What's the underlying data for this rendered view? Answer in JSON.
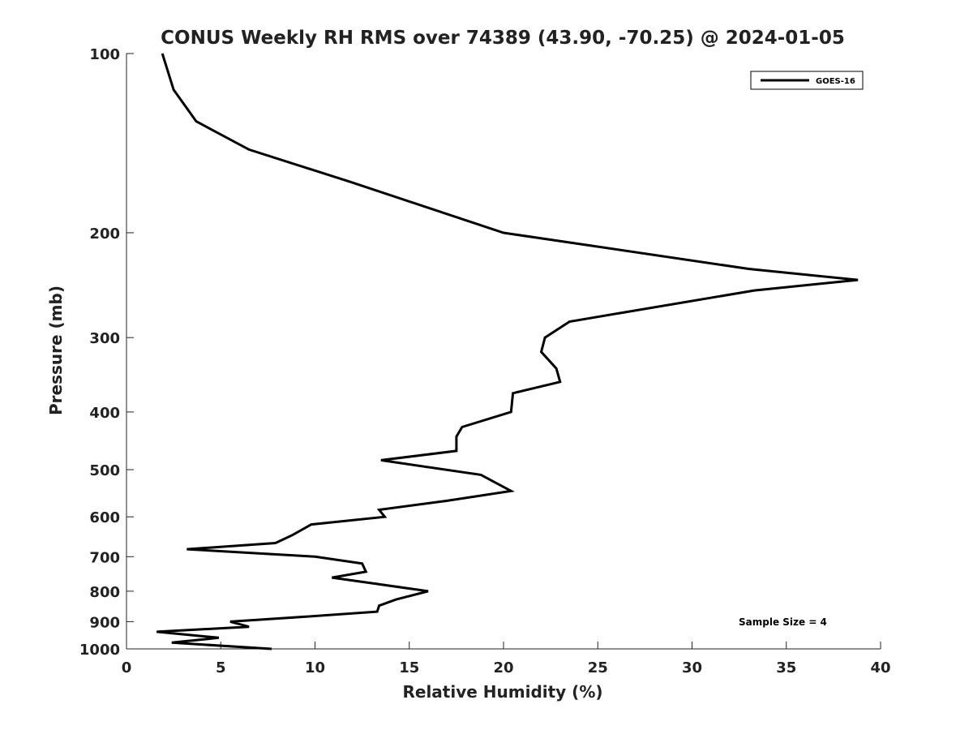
{
  "chart_data": {
    "type": "line",
    "title": "CONUS Weekly RH RMS over 74389 (43.90, -70.25) @ 2024-01-05",
    "xlabel": "Relative Humidity (%)",
    "ylabel": "Pressure (mb)",
    "xlim": [
      0,
      40
    ],
    "ylim": [
      1000,
      100
    ],
    "yscale": "log",
    "x_ticks": [
      0,
      5,
      10,
      15,
      20,
      25,
      30,
      35,
      40
    ],
    "y_ticks": [
      100,
      200,
      300,
      400,
      500,
      600,
      700,
      800,
      900,
      1000
    ],
    "grid": false,
    "legend_position": "top-right",
    "series": [
      {
        "name": "GOES-16",
        "color": "#000000",
        "points": [
          [
            1.9,
            100
          ],
          [
            2.5,
            115
          ],
          [
            3.7,
            130
          ],
          [
            6.5,
            145
          ],
          [
            11.8,
            164
          ],
          [
            20.0,
            200
          ],
          [
            33.0,
            230
          ],
          [
            38.8,
            240
          ],
          [
            33.3,
            250
          ],
          [
            23.5,
            282
          ],
          [
            22.2,
            300
          ],
          [
            22.0,
            317
          ],
          [
            22.8,
            338
          ],
          [
            23.0,
            356
          ],
          [
            20.5,
            372
          ],
          [
            20.4,
            400
          ],
          [
            17.8,
            424
          ],
          [
            17.5,
            440
          ],
          [
            17.5,
            465
          ],
          [
            13.5,
            482
          ],
          [
            18.8,
            510
          ],
          [
            20.4,
            543
          ],
          [
            17.0,
            564
          ],
          [
            13.4,
            584
          ],
          [
            13.7,
            600
          ],
          [
            9.8,
            618
          ],
          [
            8.8,
            644
          ],
          [
            7.9,
            664
          ],
          [
            3.2,
            680
          ],
          [
            10.0,
            700
          ],
          [
            12.5,
            719
          ],
          [
            12.7,
            742
          ],
          [
            10.9,
            759
          ],
          [
            13.2,
            777
          ],
          [
            16.0,
            800
          ],
          [
            14.3,
            826
          ],
          [
            13.4,
            846
          ],
          [
            13.3,
            866
          ],
          [
            9.5,
            883
          ],
          [
            5.5,
            900
          ],
          [
            6.5,
            918
          ],
          [
            1.6,
            936
          ],
          [
            4.9,
            958
          ],
          [
            2.4,
            976
          ],
          [
            7.7,
            1000
          ]
        ]
      }
    ],
    "annotations": [
      {
        "text": "Sample Size = 4"
      }
    ]
  }
}
